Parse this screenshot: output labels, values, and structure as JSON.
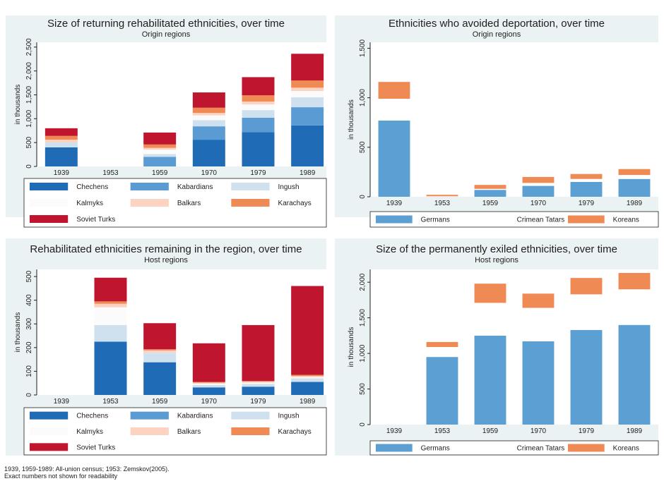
{
  "colors": {
    "Chechens": "#1f6bb5",
    "Kabardians": "#5a9bd4",
    "Ingush": "#cfe0ee",
    "Kalmyks": "#fbfbfb",
    "Balkars": "#fcd3c0",
    "Karachays": "#f08a55",
    "Soviet Turks": "#c0152e",
    "Germans": "#5b9fd3",
    "Crimean Tatars": "#ffffff",
    "Koreans": "#f08a55"
  },
  "chart_data": [
    {
      "type": "bar",
      "stacked": true,
      "title": "Size of returning rehabilitated ethnicities, over time",
      "subtitle": "Origin regions",
      "ylabel": "in thousands",
      "ylim": [
        0,
        2600
      ],
      "yticks": [
        0,
        500,
        1000,
        1500,
        2000,
        2500
      ],
      "ytick_labels": [
        "0",
        "500",
        "1,000",
        "1,500",
        "2,000",
        "2,500"
      ],
      "categories": [
        "1939",
        "1953",
        "1959",
        "1970",
        "1979",
        "1989"
      ],
      "legend_columns": 3,
      "series": [
        {
          "name": "Chechens",
          "values": [
            400,
            0,
            0,
            560,
            720,
            860
          ]
        },
        {
          "name": "Kabardians",
          "values": [
            0,
            0,
            200,
            280,
            300,
            380
          ]
        },
        {
          "name": "Ingush",
          "values": [
            100,
            0,
            60,
            130,
            160,
            210
          ]
        },
        {
          "name": "Kalmyks",
          "values": [
            0,
            0,
            90,
            100,
            120,
            130
          ]
        },
        {
          "name": "Balkars",
          "values": [
            60,
            0,
            40,
            50,
            60,
            70
          ]
        },
        {
          "name": "Karachays",
          "values": [
            80,
            0,
            70,
            110,
            130,
            150
          ]
        },
        {
          "name": "Soviet Turks",
          "values": [
            160,
            0,
            250,
            320,
            380,
            560
          ]
        }
      ]
    },
    {
      "type": "bar",
      "stacked": true,
      "title": "Ethnicities who avoided deportation, over time",
      "subtitle": "Origin regions",
      "ylabel": "in thousands",
      "ylim": [
        0,
        1560
      ],
      "yticks": [
        0,
        500,
        1000,
        1500
      ],
      "ytick_labels": [
        "0",
        "500",
        "1,000",
        "1,500"
      ],
      "categories": [
        "1939",
        "1953",
        "1959",
        "1970",
        "1979",
        "1989"
      ],
      "legend_columns": 3,
      "series": [
        {
          "name": "Germans",
          "values": [
            770,
            0,
            70,
            110,
            150,
            180
          ]
        },
        {
          "name": "Crimean Tatars",
          "values": [
            220,
            5,
            10,
            30,
            30,
            40
          ]
        },
        {
          "name": "Koreans",
          "values": [
            170,
            15,
            40,
            60,
            50,
            60
          ]
        }
      ]
    },
    {
      "type": "bar",
      "stacked": true,
      "title": "Rehabilitated ethnicities remaining in the region, over time",
      "subtitle": "Host regions",
      "ylabel": "in thousands",
      "ylim": [
        0,
        530
      ],
      "yticks": [
        0,
        100,
        200,
        300,
        400,
        500
      ],
      "ytick_labels": [
        "0",
        "100",
        "200",
        "300",
        "400",
        "500"
      ],
      "categories": [
        "1939",
        "1953",
        "1959",
        "1970",
        "1979",
        "1989"
      ],
      "legend_columns": 3,
      "series": [
        {
          "name": "Chechens",
          "values": [
            0,
            225,
            138,
            32,
            35,
            55
          ]
        },
        {
          "name": "Kabardians",
          "values": [
            0,
            0,
            0,
            0,
            0,
            0
          ]
        },
        {
          "name": "Ingush",
          "values": [
            0,
            70,
            40,
            10,
            12,
            15
          ]
        },
        {
          "name": "Kalmyks",
          "values": [
            0,
            75,
            0,
            5,
            5,
            5
          ]
        },
        {
          "name": "Balkars",
          "values": [
            0,
            15,
            10,
            5,
            4,
            5
          ]
        },
        {
          "name": "Karachays",
          "values": [
            0,
            10,
            5,
            3,
            3,
            5
          ]
        },
        {
          "name": "Soviet Turks",
          "values": [
            0,
            100,
            110,
            163,
            236,
            375
          ]
        }
      ]
    },
    {
      "type": "bar",
      "stacked": true,
      "title": "Size of the permanently exiled ethnicities, over time",
      "subtitle": "Host regions",
      "ylabel": "in thousands",
      "ylim": [
        0,
        2180
      ],
      "yticks": [
        0,
        500,
        1000,
        1500,
        2000
      ],
      "ytick_labels": [
        "0",
        "500",
        "1,000",
        "1,500",
        "2,000"
      ],
      "categories": [
        "1939",
        "1953",
        "1959",
        "1970",
        "1979",
        "1989"
      ],
      "legend_columns": 3,
      "series": [
        {
          "name": "Germans",
          "values": [
            0,
            950,
            1250,
            1170,
            1330,
            1400
          ]
        },
        {
          "name": "Crimean Tatars",
          "values": [
            0,
            140,
            460,
            470,
            500,
            500
          ]
        },
        {
          "name": "Koreans",
          "values": [
            0,
            70,
            270,
            200,
            230,
            230
          ]
        }
      ]
    }
  ],
  "notes": [
    "1939, 1959-1989: All-union census; 1953: Zemskov(2005).",
    "Exact numbers not shown for readability"
  ]
}
